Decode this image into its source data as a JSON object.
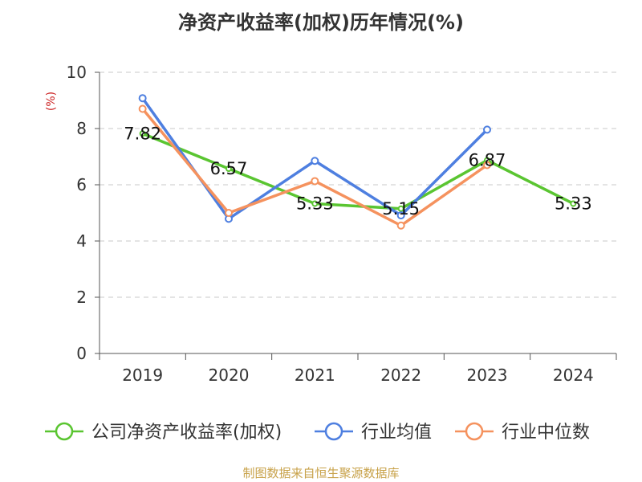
{
  "chart_data": {
    "type": "line",
    "title": "净资产收益率(加权)历年情况(%)",
    "ylabel": "(%)",
    "categories": [
      "2019",
      "2020",
      "2021",
      "2022",
      "2023",
      "2024"
    ],
    "ylim": [
      0,
      10
    ],
    "yticks": [
      0,
      2,
      4,
      6,
      8,
      10
    ],
    "grid": true,
    "legend_position": "bottom",
    "series": [
      {
        "name": "公司净资产收益率(加权)",
        "color": "#5ac531",
        "values": [
          7.82,
          6.57,
          5.33,
          5.15,
          6.87,
          5.33
        ],
        "show_labels": true,
        "show_markers": false
      },
      {
        "name": "行业均值",
        "color": "#4e7fe0",
        "values": [
          9.08,
          4.79,
          6.85,
          4.91,
          7.96,
          null
        ],
        "show_labels": false,
        "show_markers": true
      },
      {
        "name": "行业中位数",
        "color": "#f5925e",
        "values": [
          8.7,
          5.0,
          6.13,
          4.55,
          6.7,
          null
        ],
        "show_labels": false,
        "show_markers": true
      }
    ],
    "source": "制图数据来自恒生聚源数据库",
    "label_color": "#cc2222",
    "source_color": "#c8a24a"
  }
}
